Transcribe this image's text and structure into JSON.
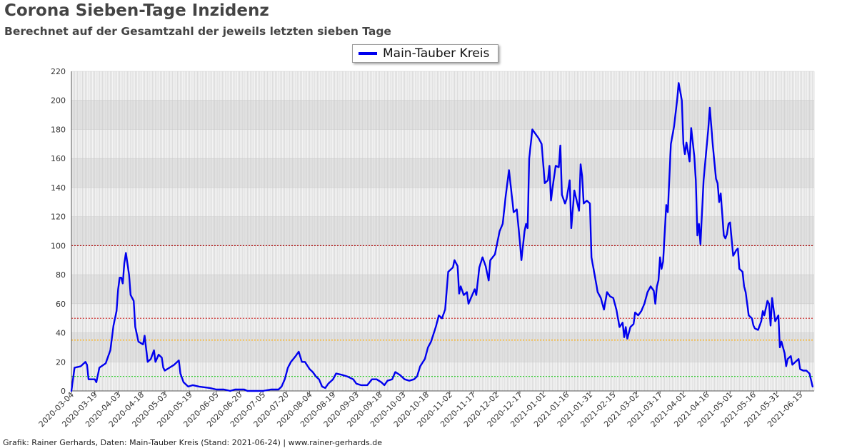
{
  "header": {
    "title": "Corona Sieben-Tage Inzidenz",
    "subtitle": "Berechnet auf der Gesamtzahl der jeweils letzten sieben Tage"
  },
  "footer": {
    "text": "Grafik: Rainer Gerhards, Daten: Main-Tauber Kreis (Stand: 2021-06-24) | www.rainer-gerhards.de"
  },
  "colors": {
    "series": "#0000ee",
    "threshold_100": "#aa0000",
    "threshold_50": "#cc2222",
    "threshold_35": "#ffaa00",
    "threshold_10": "#33cc33"
  },
  "chart_data": {
    "type": "line",
    "title": "Corona Sieben-Tage Inzidenz",
    "subtitle": "Berechnet auf der Gesamtzahl der jeweils letzten sieben Tage",
    "xlabel": "",
    "ylabel": "",
    "x_range": [
      "2020-03-04",
      "2021-06-24"
    ],
    "ylim": [
      0,
      220
    ],
    "y_ticks": [
      0,
      20,
      40,
      60,
      80,
      100,
      120,
      140,
      160,
      180,
      200,
      220
    ],
    "x_tick_labels": [
      "2020-03-04",
      "2020-03-19",
      "2020-04-03",
      "2020-04-18",
      "2020-05-03",
      "2020-05-19",
      "2020-06-05",
      "2020-06-20",
      "2020-07-05",
      "2020-07-20",
      "2020-08-04",
      "2020-08-19",
      "2020-09-03",
      "2020-09-18",
      "2020-10-03",
      "2020-10-18",
      "2020-11-02",
      "2020-11-17",
      "2020-12-02",
      "2020-12-17",
      "2021-01-01",
      "2021-01-16",
      "2021-01-31",
      "2021-02-15",
      "2021-03-02",
      "2021-03-17",
      "2021-04-01",
      "2021-04-16",
      "2021-05-01",
      "2021-05-16",
      "2021-05-31",
      "2021-06-15"
    ],
    "grid": true,
    "legend": {
      "position": "top-center",
      "entries": [
        "Main-Tauber Kreis"
      ]
    },
    "thresholds": [
      100,
      50,
      35,
      10
    ],
    "series": [
      {
        "name": "Main-Tauber Kreis",
        "points": [
          [
            "2020-03-04",
            0
          ],
          [
            "2020-03-06",
            16
          ],
          [
            "2020-03-10",
            17
          ],
          [
            "2020-03-13",
            20
          ],
          [
            "2020-03-14",
            18
          ],
          [
            "2020-03-15",
            8
          ],
          [
            "2020-03-19",
            8
          ],
          [
            "2020-03-20",
            6
          ],
          [
            "2020-03-22",
            16
          ],
          [
            "2020-03-26",
            19
          ],
          [
            "2020-03-29",
            28
          ],
          [
            "2020-03-31",
            45
          ],
          [
            "2020-04-02",
            55
          ],
          [
            "2020-04-03",
            70
          ],
          [
            "2020-04-04",
            78
          ],
          [
            "2020-04-05",
            78
          ],
          [
            "2020-04-06",
            74
          ],
          [
            "2020-04-07",
            88
          ],
          [
            "2020-04-08",
            95
          ],
          [
            "2020-04-10",
            80
          ],
          [
            "2020-04-11",
            66
          ],
          [
            "2020-04-13",
            62
          ],
          [
            "2020-04-14",
            44
          ],
          [
            "2020-04-16",
            34
          ],
          [
            "2020-04-19",
            32
          ],
          [
            "2020-04-20",
            38
          ],
          [
            "2020-04-22",
            20
          ],
          [
            "2020-04-24",
            22
          ],
          [
            "2020-04-26",
            28
          ],
          [
            "2020-04-27",
            20
          ],
          [
            "2020-04-29",
            25
          ],
          [
            "2020-05-01",
            23
          ],
          [
            "2020-05-02",
            16
          ],
          [
            "2020-05-03",
            14
          ],
          [
            "2020-05-06",
            16
          ],
          [
            "2020-05-09",
            18
          ],
          [
            "2020-05-12",
            21
          ],
          [
            "2020-05-13",
            12
          ],
          [
            "2020-05-15",
            6
          ],
          [
            "2020-05-18",
            3
          ],
          [
            "2020-05-21",
            4
          ],
          [
            "2020-05-25",
            3
          ],
          [
            "2020-06-01",
            2
          ],
          [
            "2020-06-05",
            1
          ],
          [
            "2020-06-10",
            1
          ],
          [
            "2020-06-14",
            0
          ],
          [
            "2020-06-17",
            1
          ],
          [
            "2020-06-23",
            1
          ],
          [
            "2020-06-25",
            0
          ],
          [
            "2020-07-05",
            0
          ],
          [
            "2020-07-10",
            1
          ],
          [
            "2020-07-15",
            1
          ],
          [
            "2020-07-17",
            3
          ],
          [
            "2020-07-19",
            8
          ],
          [
            "2020-07-21",
            16
          ],
          [
            "2020-07-23",
            20
          ],
          [
            "2020-07-26",
            24
          ],
          [
            "2020-07-28",
            27
          ],
          [
            "2020-07-30",
            20
          ],
          [
            "2020-08-01",
            20
          ],
          [
            "2020-08-04",
            15
          ],
          [
            "2020-08-06",
            13
          ],
          [
            "2020-08-08",
            10
          ],
          [
            "2020-08-10",
            8
          ],
          [
            "2020-08-12",
            3
          ],
          [
            "2020-08-14",
            2
          ],
          [
            "2020-08-16",
            5
          ],
          [
            "2020-08-19",
            8
          ],
          [
            "2020-08-21",
            12
          ],
          [
            "2020-08-25",
            11
          ],
          [
            "2020-08-28",
            10
          ],
          [
            "2020-09-01",
            8
          ],
          [
            "2020-09-03",
            5
          ],
          [
            "2020-09-06",
            4
          ],
          [
            "2020-09-10",
            4
          ],
          [
            "2020-09-13",
            8
          ],
          [
            "2020-09-16",
            8
          ],
          [
            "2020-09-19",
            6
          ],
          [
            "2020-09-21",
            4
          ],
          [
            "2020-09-23",
            7
          ],
          [
            "2020-09-26",
            8
          ],
          [
            "2020-09-28",
            13
          ],
          [
            "2020-10-01",
            11
          ],
          [
            "2020-10-04",
            8
          ],
          [
            "2020-10-07",
            7
          ],
          [
            "2020-10-10",
            8
          ],
          [
            "2020-10-12",
            10
          ],
          [
            "2020-10-14",
            17
          ],
          [
            "2020-10-17",
            22
          ],
          [
            "2020-10-19",
            30
          ],
          [
            "2020-10-21",
            34
          ],
          [
            "2020-10-24",
            44
          ],
          [
            "2020-10-26",
            52
          ],
          [
            "2020-10-28",
            50
          ],
          [
            "2020-10-30",
            56
          ],
          [
            "2020-11-01",
            82
          ],
          [
            "2020-11-02",
            83
          ],
          [
            "2020-11-04",
            85
          ],
          [
            "2020-11-05",
            90
          ],
          [
            "2020-11-07",
            86
          ],
          [
            "2020-11-08",
            67
          ],
          [
            "2020-11-09",
            72
          ],
          [
            "2020-11-11",
            66
          ],
          [
            "2020-11-13",
            68
          ],
          [
            "2020-11-14",
            60
          ],
          [
            "2020-11-16",
            65
          ],
          [
            "2020-11-18",
            70
          ],
          [
            "2020-11-19",
            66
          ],
          [
            "2020-11-21",
            85
          ],
          [
            "2020-11-23",
            92
          ],
          [
            "2020-11-25",
            86
          ],
          [
            "2020-11-27",
            76
          ],
          [
            "2020-11-28",
            90
          ],
          [
            "2020-12-01",
            94
          ],
          [
            "2020-12-04",
            110
          ],
          [
            "2020-12-06",
            115
          ],
          [
            "2020-12-08",
            135
          ],
          [
            "2020-12-10",
            152
          ],
          [
            "2020-12-13",
            123
          ],
          [
            "2020-12-15",
            125
          ],
          [
            "2020-12-17",
            103
          ],
          [
            "2020-12-18",
            90
          ],
          [
            "2020-12-19",
            100
          ],
          [
            "2020-12-20",
            110
          ],
          [
            "2020-12-21",
            115
          ],
          [
            "2020-12-22",
            112
          ],
          [
            "2020-12-23",
            160
          ],
          [
            "2020-12-25",
            180
          ],
          [
            "2020-12-27",
            177
          ],
          [
            "2020-12-29",
            174
          ],
          [
            "2020-12-31",
            170
          ],
          [
            "2021-01-02",
            143
          ],
          [
            "2021-01-04",
            145
          ],
          [
            "2021-01-05",
            155
          ],
          [
            "2021-01-06",
            131
          ],
          [
            "2021-01-07",
            140
          ],
          [
            "2021-01-09",
            155
          ],
          [
            "2021-01-11",
            154
          ],
          [
            "2021-01-12",
            169
          ],
          [
            "2021-01-13",
            135
          ],
          [
            "2021-01-15",
            129
          ],
          [
            "2021-01-16",
            132
          ],
          [
            "2021-01-18",
            145
          ],
          [
            "2021-01-19",
            112
          ],
          [
            "2021-01-21",
            138
          ],
          [
            "2021-01-24",
            124
          ],
          [
            "2021-01-25",
            156
          ],
          [
            "2021-01-26",
            148
          ],
          [
            "2021-01-27",
            129
          ],
          [
            "2021-01-29",
            131
          ],
          [
            "2021-01-31",
            129
          ],
          [
            "2021-02-01",
            92
          ],
          [
            "2021-02-03",
            80
          ],
          [
            "2021-02-05",
            68
          ],
          [
            "2021-02-07",
            64
          ],
          [
            "2021-02-09",
            56
          ],
          [
            "2021-02-11",
            68
          ],
          [
            "2021-02-13",
            65
          ],
          [
            "2021-02-15",
            64
          ],
          [
            "2021-02-17",
            56
          ],
          [
            "2021-02-19",
            44
          ],
          [
            "2021-02-21",
            47
          ],
          [
            "2021-02-22",
            37
          ],
          [
            "2021-02-23",
            44
          ],
          [
            "2021-02-24",
            36
          ],
          [
            "2021-02-26",
            44
          ],
          [
            "2021-02-28",
            46
          ],
          [
            "2021-03-01",
            54
          ],
          [
            "2021-03-03",
            52
          ],
          [
            "2021-03-05",
            55
          ],
          [
            "2021-03-07",
            60
          ],
          [
            "2021-03-09",
            68
          ],
          [
            "2021-03-11",
            72
          ],
          [
            "2021-03-13",
            69
          ],
          [
            "2021-03-14",
            60
          ],
          [
            "2021-03-15",
            72
          ],
          [
            "2021-03-16",
            76
          ],
          [
            "2021-03-17",
            92
          ],
          [
            "2021-03-18",
            84
          ],
          [
            "2021-03-19",
            89
          ],
          [
            "2021-03-21",
            128
          ],
          [
            "2021-03-22",
            123
          ],
          [
            "2021-03-24",
            170
          ],
          [
            "2021-03-26",
            182
          ],
          [
            "2021-03-28",
            200
          ],
          [
            "2021-03-29",
            212
          ],
          [
            "2021-03-31",
            200
          ],
          [
            "2021-04-01",
            170
          ],
          [
            "2021-04-02",
            163
          ],
          [
            "2021-04-03",
            171
          ],
          [
            "2021-04-05",
            158
          ],
          [
            "2021-04-06",
            181
          ],
          [
            "2021-04-08",
            162
          ],
          [
            "2021-04-09",
            145
          ],
          [
            "2021-04-10",
            107
          ],
          [
            "2021-04-11",
            115
          ],
          [
            "2021-04-12",
            101
          ],
          [
            "2021-04-14",
            145
          ],
          [
            "2021-04-15",
            157
          ],
          [
            "2021-04-17",
            180
          ],
          [
            "2021-04-18",
            195
          ],
          [
            "2021-04-20",
            168
          ],
          [
            "2021-04-22",
            146
          ],
          [
            "2021-04-23",
            143
          ],
          [
            "2021-04-24",
            130
          ],
          [
            "2021-04-25",
            136
          ],
          [
            "2021-04-27",
            107
          ],
          [
            "2021-04-28",
            105
          ],
          [
            "2021-04-29",
            108
          ],
          [
            "2021-04-30",
            115
          ],
          [
            "2021-05-01",
            116
          ],
          [
            "2021-05-03",
            93
          ],
          [
            "2021-05-05",
            97
          ],
          [
            "2021-05-06",
            98
          ],
          [
            "2021-05-07",
            84
          ],
          [
            "2021-05-09",
            82
          ],
          [
            "2021-05-10",
            72
          ],
          [
            "2021-05-11",
            68
          ],
          [
            "2021-05-13",
            52
          ],
          [
            "2021-05-15",
            50
          ],
          [
            "2021-05-16",
            45
          ],
          [
            "2021-05-17",
            43
          ],
          [
            "2021-05-19",
            42
          ],
          [
            "2021-05-21",
            48
          ],
          [
            "2021-05-22",
            55
          ],
          [
            "2021-05-23",
            52
          ],
          [
            "2021-05-25",
            62
          ],
          [
            "2021-05-26",
            60
          ],
          [
            "2021-05-27",
            45
          ],
          [
            "2021-05-28",
            64
          ],
          [
            "2021-05-30",
            48
          ],
          [
            "2021-05-31",
            50
          ],
          [
            "2021-06-01",
            52
          ],
          [
            "2021-06-02",
            30
          ],
          [
            "2021-06-03",
            34
          ],
          [
            "2021-06-05",
            26
          ],
          [
            "2021-06-06",
            17
          ],
          [
            "2021-06-07",
            22
          ],
          [
            "2021-06-09",
            24
          ],
          [
            "2021-06-10",
            18
          ],
          [
            "2021-06-12",
            20
          ],
          [
            "2021-06-14",
            22
          ],
          [
            "2021-06-15",
            15
          ],
          [
            "2021-06-17",
            14
          ],
          [
            "2021-06-19",
            14
          ],
          [
            "2021-06-21",
            12
          ],
          [
            "2021-06-23",
            3
          ]
        ]
      }
    ]
  }
}
